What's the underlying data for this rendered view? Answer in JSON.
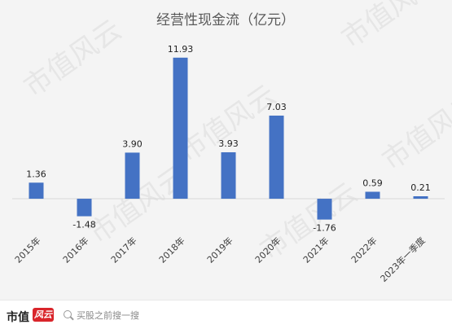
{
  "chart_data": {
    "type": "bar",
    "title": "经营性现金流（亿元）",
    "categories": [
      "2015年",
      "2016年",
      "2017年",
      "2018年",
      "2019年",
      "2020年",
      "2021年",
      "2022年",
      "2023年一季度"
    ],
    "values": [
      1.36,
      -1.48,
      3.9,
      11.93,
      3.93,
      7.03,
      -1.76,
      0.59,
      0.21
    ],
    "value_labels": [
      "1.36",
      "-1.48",
      "3.90",
      "11.93",
      "3.93",
      "7.03",
      "-1.76",
      "0.59",
      "0.21"
    ],
    "xlabel": "",
    "ylabel": "",
    "ylim": [
      -2.2,
      13.5
    ],
    "grid": false,
    "legend": "none",
    "bar_color": "#4472c4",
    "axis_color": "#d9d9d9"
  },
  "watermark": "市值风云",
  "footer": {
    "brand": "市值",
    "brand_logo": "风云",
    "search_placeholder": "买股之前搜一搜"
  }
}
